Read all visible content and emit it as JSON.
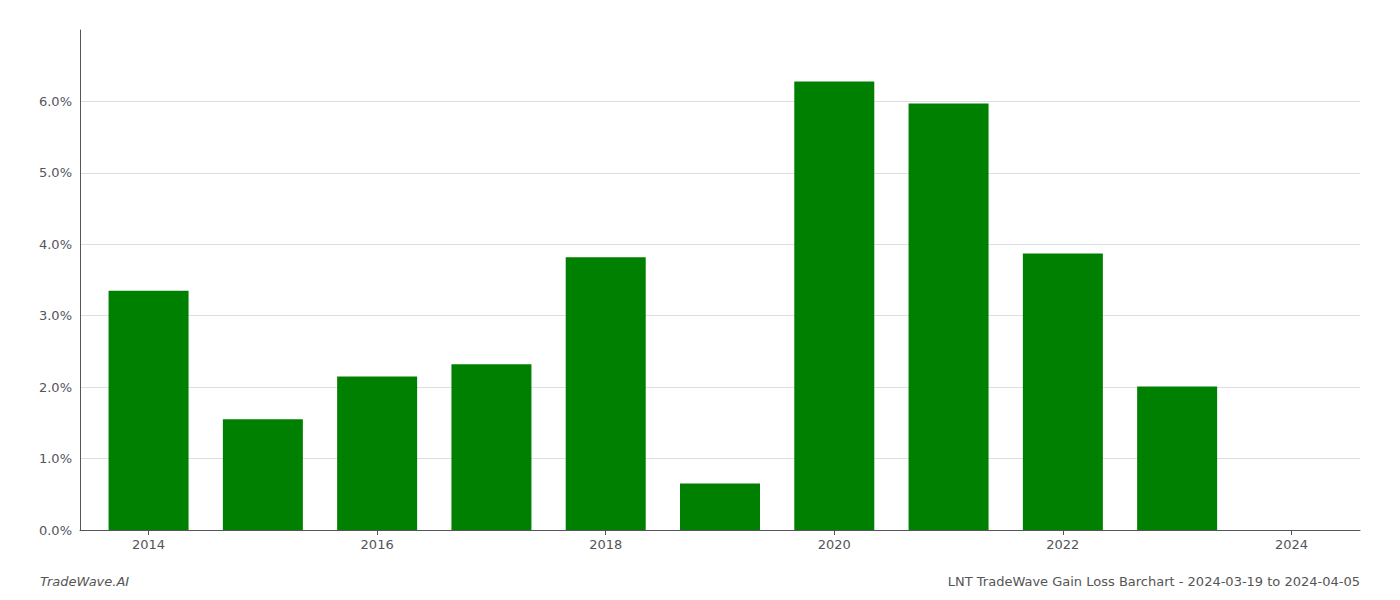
{
  "chart_data": {
    "type": "bar",
    "x": [
      2014,
      2015,
      2016,
      2017,
      2018,
      2019,
      2020,
      2021,
      2022,
      2023
    ],
    "values": [
      0.0335,
      0.0155,
      0.0215,
      0.0232,
      0.0382,
      0.0065,
      0.0628,
      0.0597,
      0.0387,
      0.0201
    ],
    "color": "#008000",
    "xlim": [
      2013.4,
      2024.6
    ],
    "xticks": [
      2014,
      2016,
      2018,
      2020,
      2022,
      2024
    ],
    "ylim": [
      0,
      0.07
    ],
    "yticks": [
      {
        "value": 0.0,
        "label": "0.0%"
      },
      {
        "value": 0.01,
        "label": "1.0%"
      },
      {
        "value": 0.02,
        "label": "2.0%"
      },
      {
        "value": 0.03,
        "label": "3.0%"
      },
      {
        "value": 0.04,
        "label": "4.0%"
      },
      {
        "value": 0.05,
        "label": "5.0%"
      },
      {
        "value": 0.06,
        "label": "6.0%"
      }
    ],
    "grid": true,
    "annotations": [
      "TradeWave.AI",
      "LNT TradeWave Gain Loss Barchart - 2024-03-19 to 2024-04-05"
    ]
  }
}
